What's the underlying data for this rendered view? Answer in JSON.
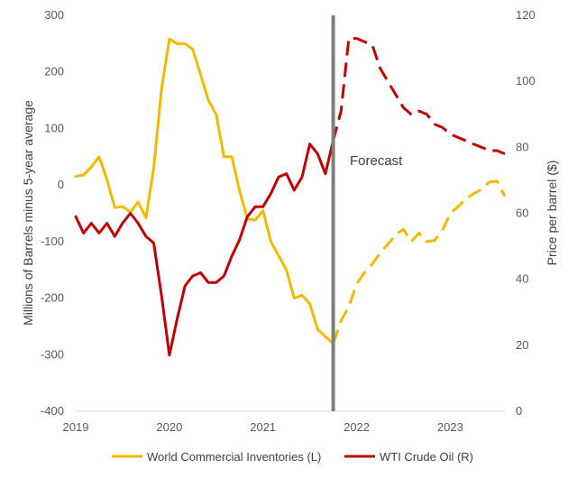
{
  "chart_data": {
    "type": "line",
    "title": "",
    "ylabel_left": "Millions of Barrels minus 5-year average",
    "ylabel_right": "Price per barrel ($)",
    "ylim_left": [
      -400,
      300
    ],
    "ylim_right": [
      0,
      120
    ],
    "yticks_left": [
      "300",
      "200",
      "100",
      "0",
      "-100",
      "-200",
      "-300",
      "-400"
    ],
    "yticks_right": [
      "120",
      "100",
      "80",
      "60",
      "40",
      "20",
      "0"
    ],
    "xticks": [
      "2019",
      "2020",
      "2021",
      "2022",
      "2023"
    ],
    "xlim": [
      "2019-01",
      "2023-08"
    ],
    "forecast_start": "2021-10",
    "annotation": "Forecast",
    "grid": false,
    "legend_position": "bottom",
    "series": [
      {
        "name": "World Commercial Inventories (L)",
        "axis": "left",
        "color": "#F5B800",
        "x": [
          "2019-01",
          "2019-02",
          "2019-03",
          "2019-04",
          "2019-05",
          "2019-06",
          "2019-07",
          "2019-08",
          "2019-09",
          "2019-10",
          "2019-11",
          "2019-12",
          "2020-01",
          "2020-02",
          "2020-03",
          "2020-04",
          "2020-05",
          "2020-06",
          "2020-07",
          "2020-08",
          "2020-09",
          "2020-10",
          "2020-11",
          "2020-12",
          "2021-01",
          "2021-02",
          "2021-03",
          "2021-04",
          "2021-05",
          "2021-06",
          "2021-07",
          "2021-08",
          "2021-09",
          "2021-10",
          "2021-11",
          "2021-12",
          "2022-01",
          "2022-02",
          "2022-03",
          "2022-04",
          "2022-05",
          "2022-06",
          "2022-07",
          "2022-08",
          "2022-09",
          "2022-10",
          "2022-11",
          "2022-12",
          "2023-01",
          "2023-02",
          "2023-03",
          "2023-04",
          "2023-05",
          "2023-06",
          "2023-07",
          "2023-08"
        ],
        "values": [
          15,
          18,
          32,
          50,
          10,
          -40,
          -38,
          -48,
          -30,
          -58,
          30,
          170,
          258,
          250,
          250,
          240,
          195,
          150,
          125,
          50,
          50,
          -10,
          -60,
          -62,
          -45,
          -100,
          -125,
          -150,
          -200,
          -195,
          -210,
          -255,
          -268,
          -280,
          -240,
          -215,
          -175,
          -155,
          -140,
          -120,
          -105,
          -88,
          -78,
          -100,
          -85,
          -100,
          -98,
          -80,
          -50,
          -38,
          -25,
          -15,
          -8,
          5,
          7,
          -20
        ]
      },
      {
        "name": "WTI Crude Oil (R)",
        "axis": "right",
        "color": "#C00000",
        "x": [
          "2019-01",
          "2019-02",
          "2019-03",
          "2019-04",
          "2019-05",
          "2019-06",
          "2019-07",
          "2019-08",
          "2019-09",
          "2019-10",
          "2019-11",
          "2019-12",
          "2020-01",
          "2020-02",
          "2020-03",
          "2020-04",
          "2020-05",
          "2020-06",
          "2020-07",
          "2020-08",
          "2020-09",
          "2020-10",
          "2020-11",
          "2020-12",
          "2021-01",
          "2021-02",
          "2021-03",
          "2021-04",
          "2021-05",
          "2021-06",
          "2021-07",
          "2021-08",
          "2021-09",
          "2021-10",
          "2021-11",
          "2021-12",
          "2022-01",
          "2022-02",
          "2022-03",
          "2022-04",
          "2022-05",
          "2022-06",
          "2022-07",
          "2022-08",
          "2022-09",
          "2022-10",
          "2022-11",
          "2022-12",
          "2023-01",
          "2023-02",
          "2023-03",
          "2023-04",
          "2023-05",
          "2023-06",
          "2023-07",
          "2023-08"
        ],
        "values": [
          59,
          54,
          57,
          54,
          57,
          53,
          57,
          60,
          57,
          53,
          51,
          35,
          17,
          28,
          38,
          41,
          42,
          39,
          39,
          41,
          47,
          52,
          59,
          62,
          62,
          66,
          71,
          72,
          67,
          71,
          81,
          78,
          72,
          82,
          91,
          113,
          113,
          112,
          111,
          104,
          100,
          96,
          92,
          90,
          91,
          90,
          87,
          86,
          84,
          83,
          82,
          81,
          80,
          79,
          79,
          78
        ]
      }
    ]
  }
}
